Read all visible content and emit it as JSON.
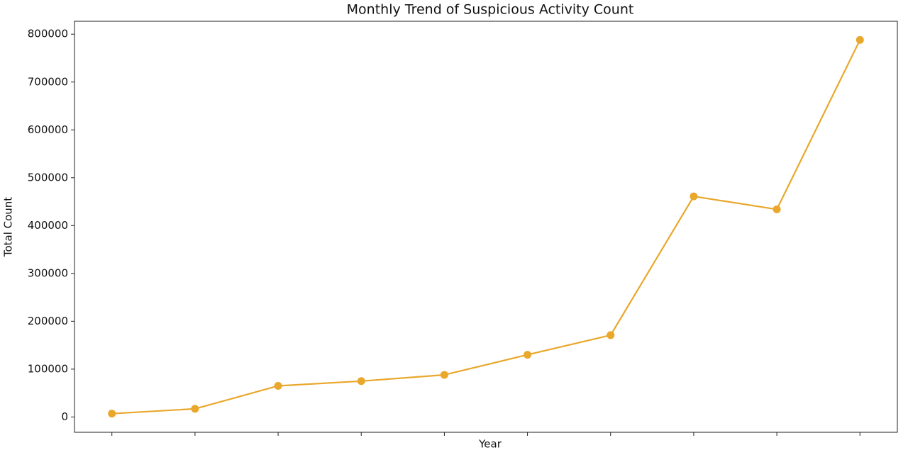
{
  "chart_data": {
    "type": "line",
    "title": "Monthly Trend of Suspicious Activity Count",
    "x_label": "Year",
    "y_label": "Total Count",
    "categories": [
      null,
      null,
      null,
      null,
      null,
      null,
      null,
      null,
      null,
      null
    ],
    "series": [
      {
        "name": "Total Count",
        "color": "#e9a72b",
        "values": [
          7000,
          17000,
          65000,
          75000,
          88000,
          130000,
          171000,
          461000,
          434000,
          788000
        ]
      }
    ],
    "ylim": [
      -32000,
      827000
    ],
    "yticks": [
      0,
      100000,
      200000,
      300000,
      400000,
      500000,
      600000,
      700000,
      800000
    ],
    "grid": false
  }
}
